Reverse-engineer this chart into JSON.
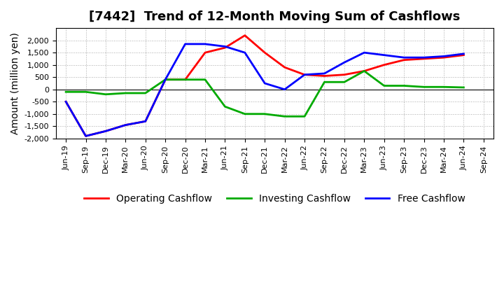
{
  "title": "[7442]  Trend of 12-Month Moving Sum of Cashflows",
  "ylabel": "Amount (million yen)",
  "background_color": "#ffffff",
  "plot_bg_color": "#ffffff",
  "grid_color": "#aaaaaa",
  "title_fontsize": 13,
  "label_fontsize": 10,
  "tick_fontsize": 8,
  "legend_fontsize": 10,
  "ylim": [
    -2000,
    2500
  ],
  "yticks": [
    -2000,
    -1500,
    -1000,
    -500,
    0,
    500,
    1000,
    1500,
    2000
  ],
  "x_labels": [
    "Jun-19",
    "Sep-19",
    "Dec-19",
    "Mar-20",
    "Jun-20",
    "Sep-20",
    "Dec-20",
    "Mar-21",
    "Jun-21",
    "Sep-21",
    "Dec-21",
    "Mar-22",
    "Jun-22",
    "Sep-22",
    "Dec-22",
    "Mar-23",
    "Jun-23",
    "Sep-23",
    "Dec-23",
    "Mar-24",
    "Jun-24",
    "Sep-24"
  ],
  "operating": [
    -500,
    -1900,
    -1700,
    -1450,
    -1300,
    400,
    400,
    1500,
    1700,
    2200,
    1500,
    900,
    600,
    550,
    600,
    750,
    1000,
    1200,
    1250,
    1300,
    1400,
    null
  ],
  "investing": [
    -100,
    -100,
    -200,
    -150,
    -150,
    400,
    400,
    400,
    -700,
    -1000,
    -1000,
    -1100,
    -1100,
    300,
    300,
    750,
    150,
    150,
    100,
    100,
    80,
    null
  ],
  "free": [
    -500,
    -1900,
    -1700,
    -1450,
    -1300,
    400,
    1850,
    1850,
    1750,
    1500,
    250,
    0,
    600,
    650,
    1100,
    1500,
    1400,
    1300,
    1300,
    1350,
    1450,
    null
  ],
  "operating_color": "#ff0000",
  "investing_color": "#00aa00",
  "free_color": "#0000ff",
  "line_width": 2.0
}
